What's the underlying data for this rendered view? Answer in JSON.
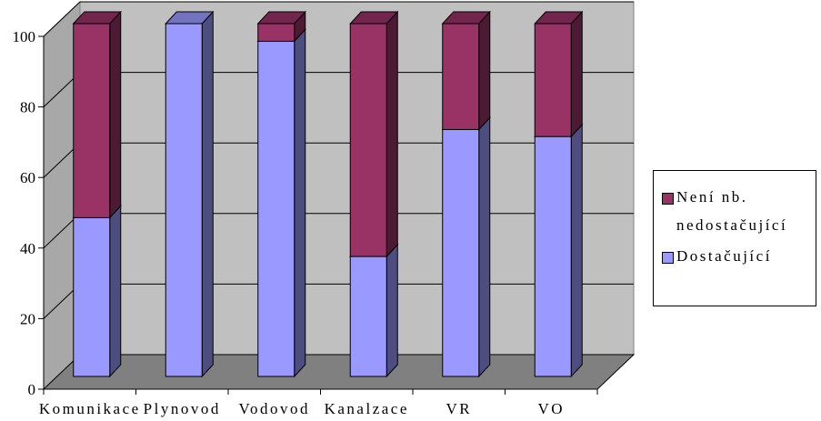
{
  "chart_data": {
    "type": "bar",
    "stacked": true,
    "style": "3d",
    "categories": [
      "Komunikace",
      "Plynovod",
      "Vodovod",
      "Kanalzace",
      "VR",
      "VO"
    ],
    "series": [
      {
        "name": "Dostačující",
        "values": [
          45,
          100,
          95,
          34,
          70,
          68
        ],
        "color": "#9999FF"
      },
      {
        "name": "Není nb. nedostačující",
        "values": [
          55,
          0,
          5,
          66,
          30,
          32
        ],
        "color": "#993366"
      }
    ],
    "y_ticks": [
      "0",
      "20",
      "40",
      "60",
      "80",
      "100"
    ],
    "ylim": [
      0,
      100
    ],
    "grid": true,
    "legend_position": "right",
    "legend": {
      "item1_line1": "Není nb.",
      "item1_line2": "nedostačující",
      "item2": "Dostačující"
    }
  }
}
